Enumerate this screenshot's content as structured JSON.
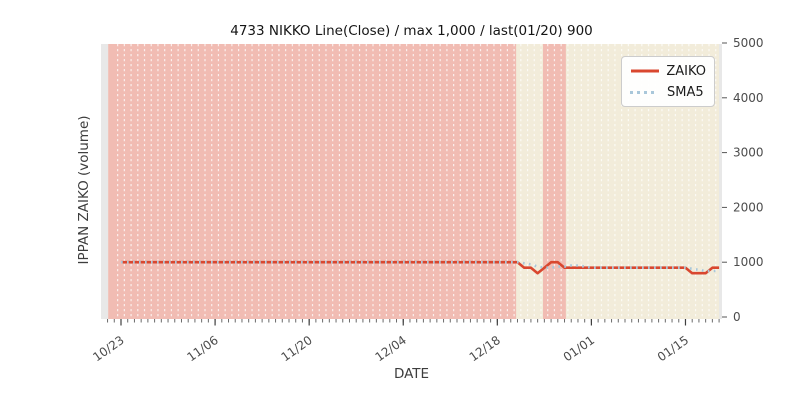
{
  "title": "4733 NIKKO Line(Close) / max 1,000 / last(01/20) 900",
  "legend": {
    "items": [
      {
        "label": "ZAIKO",
        "style": "solid"
      },
      {
        "label": "SMA5",
        "style": "dotted"
      }
    ]
  },
  "x_axis": {
    "label": "DATE",
    "major_ticks": [
      "10/23",
      "11/06",
      "11/20",
      "12/04",
      "12/18",
      "01/01",
      "01/15"
    ]
  },
  "y_axis": {
    "label": "IPPAN ZAIKO (volume)",
    "ticks": [
      "0",
      "1000",
      "2000",
      "3000",
      "4000",
      "5000"
    ]
  },
  "colors": {
    "zaiko_line": "#d9472f",
    "sma5_line": "#a9c7da",
    "band_pink": "#f1bcb3",
    "band_beige": "#f2ecda",
    "plot_margin_gray": "#e8e8e8",
    "grid_dash": "#ffffff"
  },
  "chart_data": {
    "type": "line",
    "title": "4733 NIKKO Line(Close) / max 1,000 / last(01/20) 900",
    "xlabel": "DATE",
    "ylabel": "IPPAN ZAIKO (volume)",
    "ylim": [
      0,
      5000
    ],
    "grid": "white dashed vertical line per day over background bands",
    "legend_position": "upper right",
    "x": [
      "10/23",
      "10/24",
      "10/25",
      "10/26",
      "10/27",
      "10/28",
      "10/29",
      "10/30",
      "10/31",
      "11/01",
      "11/02",
      "11/03",
      "11/04",
      "11/05",
      "11/06",
      "11/07",
      "11/08",
      "11/09",
      "11/10",
      "11/11",
      "11/12",
      "11/13",
      "11/14",
      "11/15",
      "11/16",
      "11/17",
      "11/18",
      "11/19",
      "11/20",
      "11/21",
      "11/22",
      "11/23",
      "11/24",
      "11/25",
      "11/26",
      "11/27",
      "11/28",
      "11/29",
      "11/30",
      "12/01",
      "12/02",
      "12/03",
      "12/04",
      "12/05",
      "12/06",
      "12/07",
      "12/08",
      "12/09",
      "12/10",
      "12/11",
      "12/12",
      "12/13",
      "12/14",
      "12/15",
      "12/16",
      "12/17",
      "12/18",
      "12/19",
      "12/20",
      "12/21",
      "12/22",
      "12/23",
      "12/24",
      "12/25",
      "12/26",
      "12/27",
      "12/28",
      "12/29",
      "12/30",
      "12/31",
      "01/01",
      "01/02",
      "01/03",
      "01/04",
      "01/05",
      "01/06",
      "01/07",
      "01/08",
      "01/09",
      "01/10",
      "01/11",
      "01/12",
      "01/13",
      "01/14",
      "01/15",
      "01/16",
      "01/17",
      "01/18",
      "01/19",
      "01/20"
    ],
    "series": [
      {
        "name": "ZAIKO",
        "style": "solid",
        "color": "#d9472f",
        "values": [
          1000,
          1000,
          1000,
          1000,
          1000,
          1000,
          1000,
          1000,
          1000,
          1000,
          1000,
          1000,
          1000,
          1000,
          1000,
          1000,
          1000,
          1000,
          1000,
          1000,
          1000,
          1000,
          1000,
          1000,
          1000,
          1000,
          1000,
          1000,
          1000,
          1000,
          1000,
          1000,
          1000,
          1000,
          1000,
          1000,
          1000,
          1000,
          1000,
          1000,
          1000,
          1000,
          1000,
          1000,
          1000,
          1000,
          1000,
          1000,
          1000,
          1000,
          1000,
          1000,
          1000,
          1000,
          1000,
          1000,
          1000,
          1000,
          1000,
          1000,
          900,
          900,
          800,
          900,
          1000,
          1000,
          900,
          900,
          900,
          900,
          900,
          900,
          900,
          900,
          900,
          900,
          900,
          900,
          900,
          900,
          900,
          900,
          900,
          900,
          900,
          800,
          800,
          800,
          900,
          900
        ]
      },
      {
        "name": "SMA5",
        "style": "dotted",
        "color": "#a9c7da",
        "values": [
          1000,
          1000,
          1000,
          1000,
          1000,
          1000,
          1000,
          1000,
          1000,
          1000,
          1000,
          1000,
          1000,
          1000,
          1000,
          1000,
          1000,
          1000,
          1000,
          1000,
          1000,
          1000,
          1000,
          1000,
          1000,
          1000,
          1000,
          1000,
          1000,
          1000,
          1000,
          1000,
          1000,
          1000,
          1000,
          1000,
          1000,
          1000,
          1000,
          1000,
          1000,
          1000,
          1000,
          1000,
          1000,
          1000,
          1000,
          1000,
          1000,
          1000,
          1000,
          1000,
          1000,
          1000,
          1000,
          1000,
          1000,
          1000,
          1000,
          1000,
          980,
          960,
          920,
          900,
          900,
          920,
          920,
          940,
          940,
          920,
          900,
          900,
          900,
          900,
          900,
          900,
          900,
          900,
          900,
          900,
          900,
          900,
          900,
          900,
          900,
          880,
          860,
          840,
          840,
          840
        ]
      }
    ],
    "background_bands": {
      "base_color": "#f2ecda",
      "pink_color": "#f1bcb3",
      "data_range_idx": [
        -1.9,
        89
      ],
      "pink_ranges_idx": [
        [
          -1.9,
          58.8
        ],
        [
          62.8,
          66.2
        ]
      ]
    }
  }
}
